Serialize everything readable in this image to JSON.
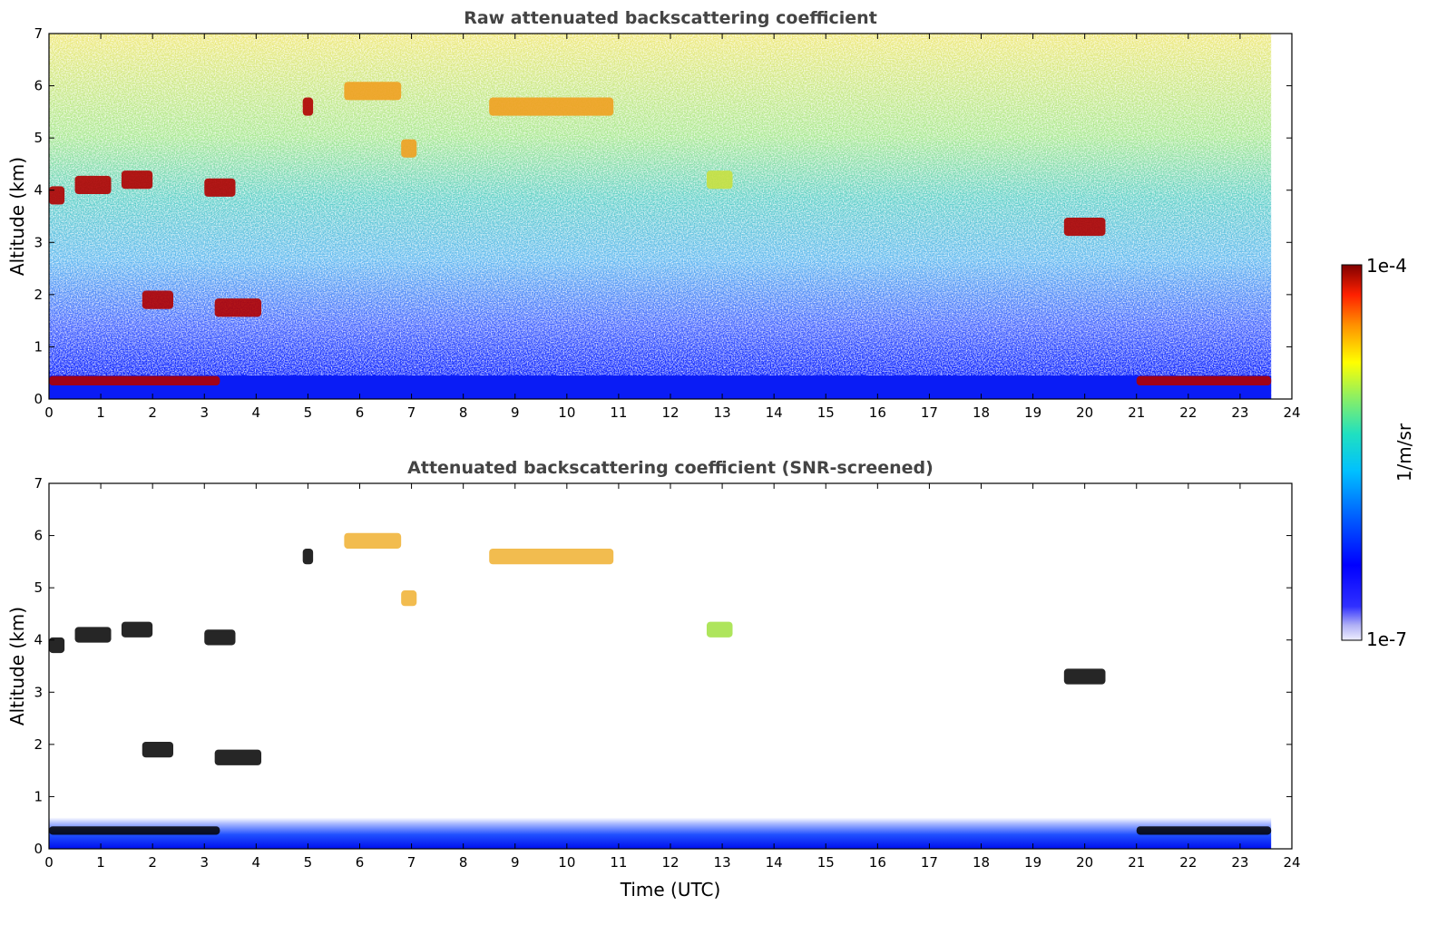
{
  "chart_data": [
    {
      "type": "heatmap",
      "title": "Raw attenuated backscattering coefficient",
      "ylabel": "Altitude (km)",
      "xlabel": "",
      "xlim": [
        0,
        24
      ],
      "ylim": [
        0,
        7
      ],
      "xticks": [
        "0",
        "1",
        "2",
        "3",
        "4",
        "5",
        "6",
        "7",
        "8",
        "9",
        "10",
        "11",
        "12",
        "13",
        "14",
        "15",
        "16",
        "17",
        "18",
        "19",
        "20",
        "21",
        "22",
        "23",
        "24"
      ],
      "yticks": [
        "0",
        "1",
        "2",
        "3",
        "4",
        "5",
        "6",
        "7"
      ],
      "data_extent_x": [
        0,
        23.6
      ],
      "features": [
        {
          "kind": "boundary_layer",
          "t0": 0.0,
          "t1": 3.3,
          "alt": 0.35,
          "intensity": "1e-4"
        },
        {
          "kind": "boundary_layer",
          "t0": 21.0,
          "t1": 23.6,
          "alt": 0.35,
          "intensity": "1e-4"
        },
        {
          "kind": "cloud",
          "t0": 0.0,
          "t1": 0.3,
          "alt": 3.9,
          "intensity": "1e-4"
        },
        {
          "kind": "cloud",
          "t0": 0.5,
          "t1": 1.2,
          "alt": 4.1,
          "intensity": "1e-4"
        },
        {
          "kind": "cloud",
          "t0": 1.4,
          "t1": 2.0,
          "alt": 4.2,
          "intensity": "1e-4"
        },
        {
          "kind": "cloud",
          "t0": 3.0,
          "t1": 3.6,
          "alt": 4.05,
          "intensity": "1e-4"
        },
        {
          "kind": "cloud",
          "t0": 1.8,
          "t1": 2.4,
          "alt": 1.9,
          "intensity": "1e-4"
        },
        {
          "kind": "cloud",
          "t0": 3.2,
          "t1": 4.1,
          "alt": 1.75,
          "intensity": "1e-4"
        },
        {
          "kind": "cloud",
          "t0": 4.9,
          "t1": 5.1,
          "alt": 5.6,
          "intensity": "1e-4"
        },
        {
          "kind": "cloud",
          "t0": 5.7,
          "t1": 6.8,
          "alt": 5.9,
          "intensity": "1e-5"
        },
        {
          "kind": "cloud",
          "t0": 6.8,
          "t1": 7.1,
          "alt": 4.8,
          "intensity": "1e-5"
        },
        {
          "kind": "cloud",
          "t0": 8.5,
          "t1": 10.9,
          "alt": 5.6,
          "intensity": "1e-5"
        },
        {
          "kind": "cloud",
          "t0": 12.7,
          "t1": 13.2,
          "alt": 4.2,
          "intensity": "5e-6"
        },
        {
          "kind": "cloud",
          "t0": 19.6,
          "t1": 20.4,
          "alt": 3.3,
          "intensity": "1e-4"
        }
      ]
    },
    {
      "type": "heatmap",
      "title": "Attenuated backscattering coefficient (SNR-screened)",
      "ylabel": "Altitude (km)",
      "xlabel": "Time (UTC)",
      "xlim": [
        0,
        24
      ],
      "ylim": [
        0,
        7
      ],
      "xticks": [
        "0",
        "1",
        "2",
        "3",
        "4",
        "5",
        "6",
        "7",
        "8",
        "9",
        "10",
        "11",
        "12",
        "13",
        "14",
        "15",
        "16",
        "17",
        "18",
        "19",
        "20",
        "21",
        "22",
        "23",
        "24"
      ],
      "yticks": [
        "0",
        "1",
        "2",
        "3",
        "4",
        "5",
        "6",
        "7"
      ],
      "data_extent_x": [
        0,
        23.6
      ]
    }
  ],
  "colorbar": {
    "label": "1/m/sr",
    "max_label": "1e-4",
    "min_label": "1e-7",
    "colors": [
      "#e6e6fa",
      "#c0c0f0",
      "#9999ee",
      "#0000ff",
      "#0040ff",
      "#0080ff",
      "#00b8ff",
      "#00e0e0",
      "#40f0a0",
      "#a0f050",
      "#ffff00",
      "#ffc000",
      "#ff8000",
      "#ff3000",
      "#dd0000",
      "#800000"
    ]
  }
}
